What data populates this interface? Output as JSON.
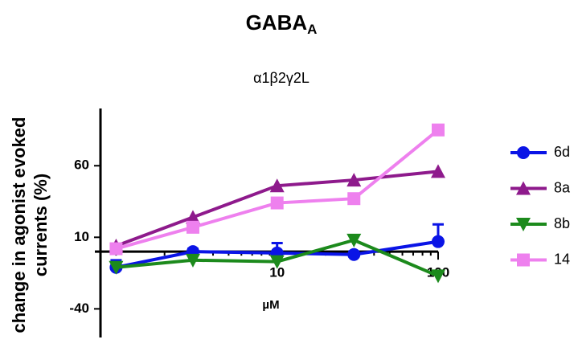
{
  "chart_data": {
    "type": "line",
    "title": "GABA",
    "title_subscript": "A",
    "subtitle": "α1β2γ2L",
    "xlabel": "µM",
    "ylabel": [
      "change in agonist evoked",
      "currents (%)"
    ],
    "x": [
      1,
      3,
      10,
      30,
      100
    ],
    "xscale": "log",
    "xlim": [
      0.8,
      100
    ],
    "xticks": [
      10,
      100
    ],
    "xminor_ticks": [
      1,
      2,
      3,
      4,
      5,
      6,
      7,
      8,
      9,
      20,
      30,
      40,
      50,
      60,
      70,
      80,
      90
    ],
    "ylim": [
      -60,
      100
    ],
    "yticks": [
      -40,
      10,
      60
    ],
    "legend": "right",
    "series": [
      {
        "name": "6d",
        "color": "#0a14e6",
        "marker": "circle",
        "values": [
          -11,
          0,
          -1,
          -2,
          7
        ],
        "errors": [
          5,
          2,
          7,
          2,
          12
        ]
      },
      {
        "name": "8a",
        "color": "#8e1a8c",
        "marker": "triangle-up",
        "values": [
          4,
          24,
          46,
          50,
          56
        ]
      },
      {
        "name": "8b",
        "color": "#1c8a1c",
        "marker": "triangle-down",
        "values": [
          -11,
          -6,
          -7,
          8,
          -17
        ]
      },
      {
        "name": "14",
        "color": "#ee80ee",
        "marker": "square",
        "values": [
          2,
          17,
          34,
          37,
          85
        ]
      }
    ]
  }
}
